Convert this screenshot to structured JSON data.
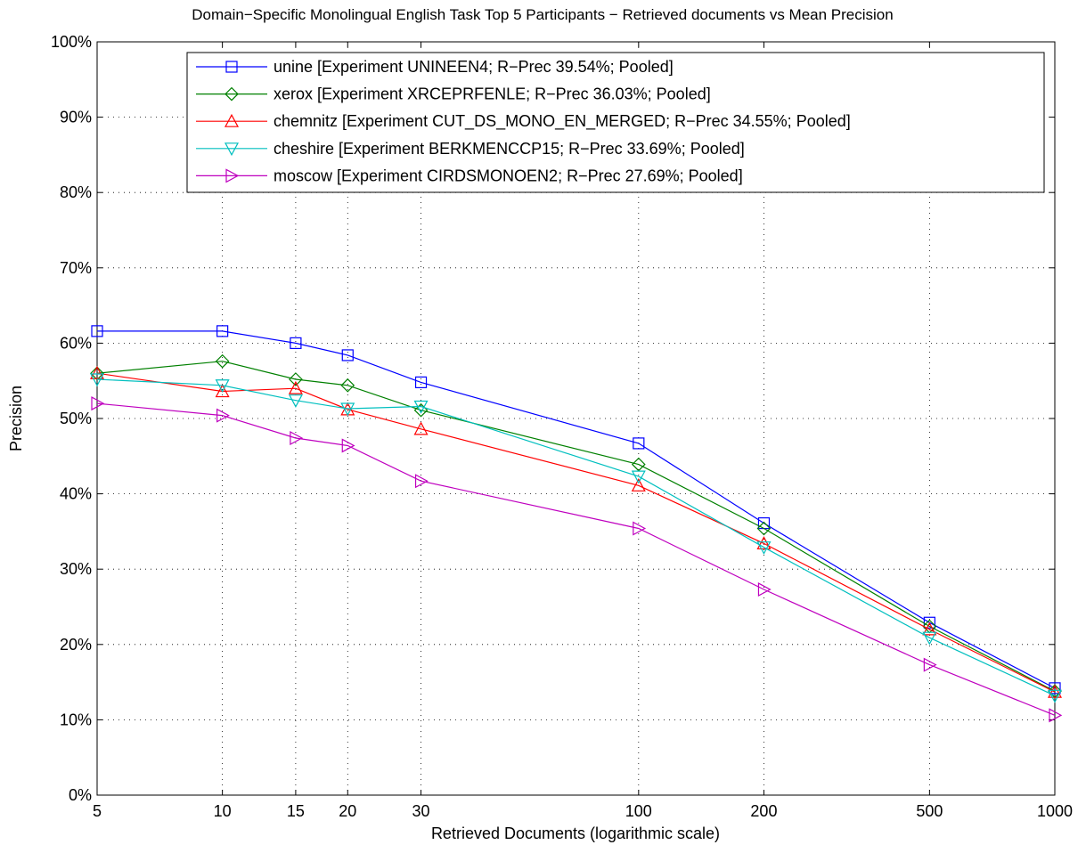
{
  "chart_data": {
    "type": "line",
    "title": "Domain−Specific Monolingual English Task Top 5 Participants − Retrieved documents vs Mean Precision",
    "xlabel": "Retrieved Documents (logarithmic scale)",
    "ylabel": "Precision",
    "x_scale": "log",
    "x": [
      5,
      10,
      15,
      20,
      30,
      100,
      200,
      500,
      1000
    ],
    "x_tick_labels": [
      "5",
      "10",
      "15",
      "20",
      "30",
      "100",
      "200",
      "500",
      "1000"
    ],
    "xlim": [
      5,
      1000
    ],
    "ylim": [
      0,
      100
    ],
    "y_ticks": [
      0,
      10,
      20,
      30,
      40,
      50,
      60,
      70,
      80,
      90,
      100
    ],
    "y_tick_labels": [
      "0%",
      "10%",
      "20%",
      "30%",
      "40%",
      "50%",
      "60%",
      "70%",
      "80%",
      "90%",
      "100%"
    ],
    "grid": true,
    "legend_position": "top-right",
    "series": [
      {
        "name": "unine [Experiment UNINEEN4; R−Prec 39.54%; Pooled]",
        "color": "#0000ff",
        "marker": "square",
        "values": [
          61.6,
          61.6,
          60.0,
          58.4,
          54.8,
          46.7,
          36.1,
          22.9,
          14.2
        ]
      },
      {
        "name": "xerox [Experiment XRCEPRFENLE; R−Prec 36.03%; Pooled]",
        "color": "#008000",
        "marker": "diamond",
        "values": [
          56.0,
          57.6,
          55.2,
          54.4,
          51.1,
          43.9,
          35.4,
          22.4,
          13.8
        ]
      },
      {
        "name": "chemnitz [Experiment CUT_DS_MONO_EN_MERGED; R−Prec 34.55%; Pooled]",
        "color": "#ff0000",
        "marker": "triangle-up",
        "values": [
          56.0,
          53.6,
          54.0,
          51.2,
          48.6,
          41.1,
          33.4,
          22.0,
          13.7
        ]
      },
      {
        "name": "cheshire [Experiment BERKMENCCP15; R−Prec 33.69%; Pooled]",
        "color": "#00bfbf",
        "marker": "triangle-down",
        "values": [
          55.2,
          54.4,
          52.4,
          51.3,
          51.6,
          42.3,
          32.9,
          20.9,
          13.2
        ]
      },
      {
        "name": "moscow [Experiment CIRDSMONOEN2; R−Prec 27.69%; Pooled]",
        "color": "#bf00bf",
        "marker": "triangle-right",
        "values": [
          52.0,
          50.4,
          47.4,
          46.4,
          41.7,
          35.4,
          27.3,
          17.3,
          10.6
        ]
      }
    ]
  }
}
